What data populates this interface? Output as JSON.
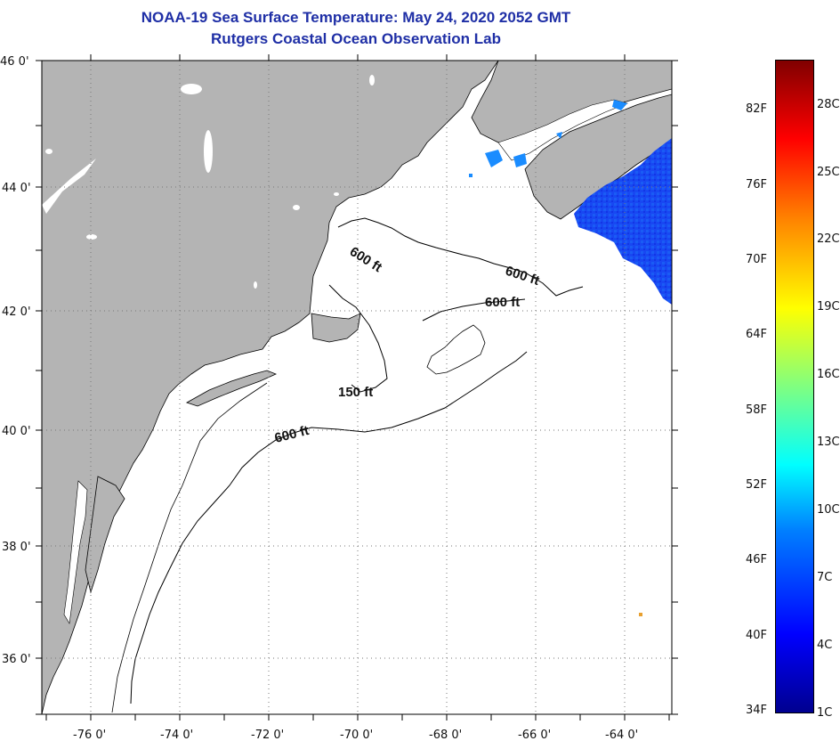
{
  "title": "NOAA-19 Sea Surface Temperature:  May 24, 2020 2052 GMT",
  "subtitle": "Rutgers Coastal Ocean Observation Lab",
  "map": {
    "lat_range": [
      35,
      46
    ],
    "lon_range": [
      -77,
      -63
    ],
    "lat_ticks": [
      "46 0'",
      "44 0'",
      "42 0'",
      "40 0'",
      "38 0'",
      "36 0'"
    ],
    "lon_ticks": [
      "-76 0'",
      "-74 0'",
      "-72 0'",
      "-70 0'",
      "-68 0'",
      "-66 0'",
      "-64 0'"
    ],
    "contour_labels": [
      "600 ft",
      "600 ft",
      "600 ft",
      "150 ft",
      "600 ft"
    ],
    "grid": "dotted",
    "colors": {
      "land": "#b4b4b4",
      "ocean": "#ffffff",
      "sst_cold": "#1440f0",
      "sst_cool": "#1a8cff",
      "title": "#1f2fa6"
    }
  },
  "colorbar": {
    "fahrenheit_labels": [
      "82F",
      "76F",
      "70F",
      "64F",
      "58F",
      "52F",
      "46F",
      "40F",
      "34F"
    ],
    "celsius_labels": [
      "28C",
      "25C",
      "22C",
      "19C",
      "16C",
      "13C",
      "10C",
      "7C",
      "4C",
      "1C"
    ],
    "range_c": [
      1,
      30
    ],
    "colormap": "jet"
  }
}
